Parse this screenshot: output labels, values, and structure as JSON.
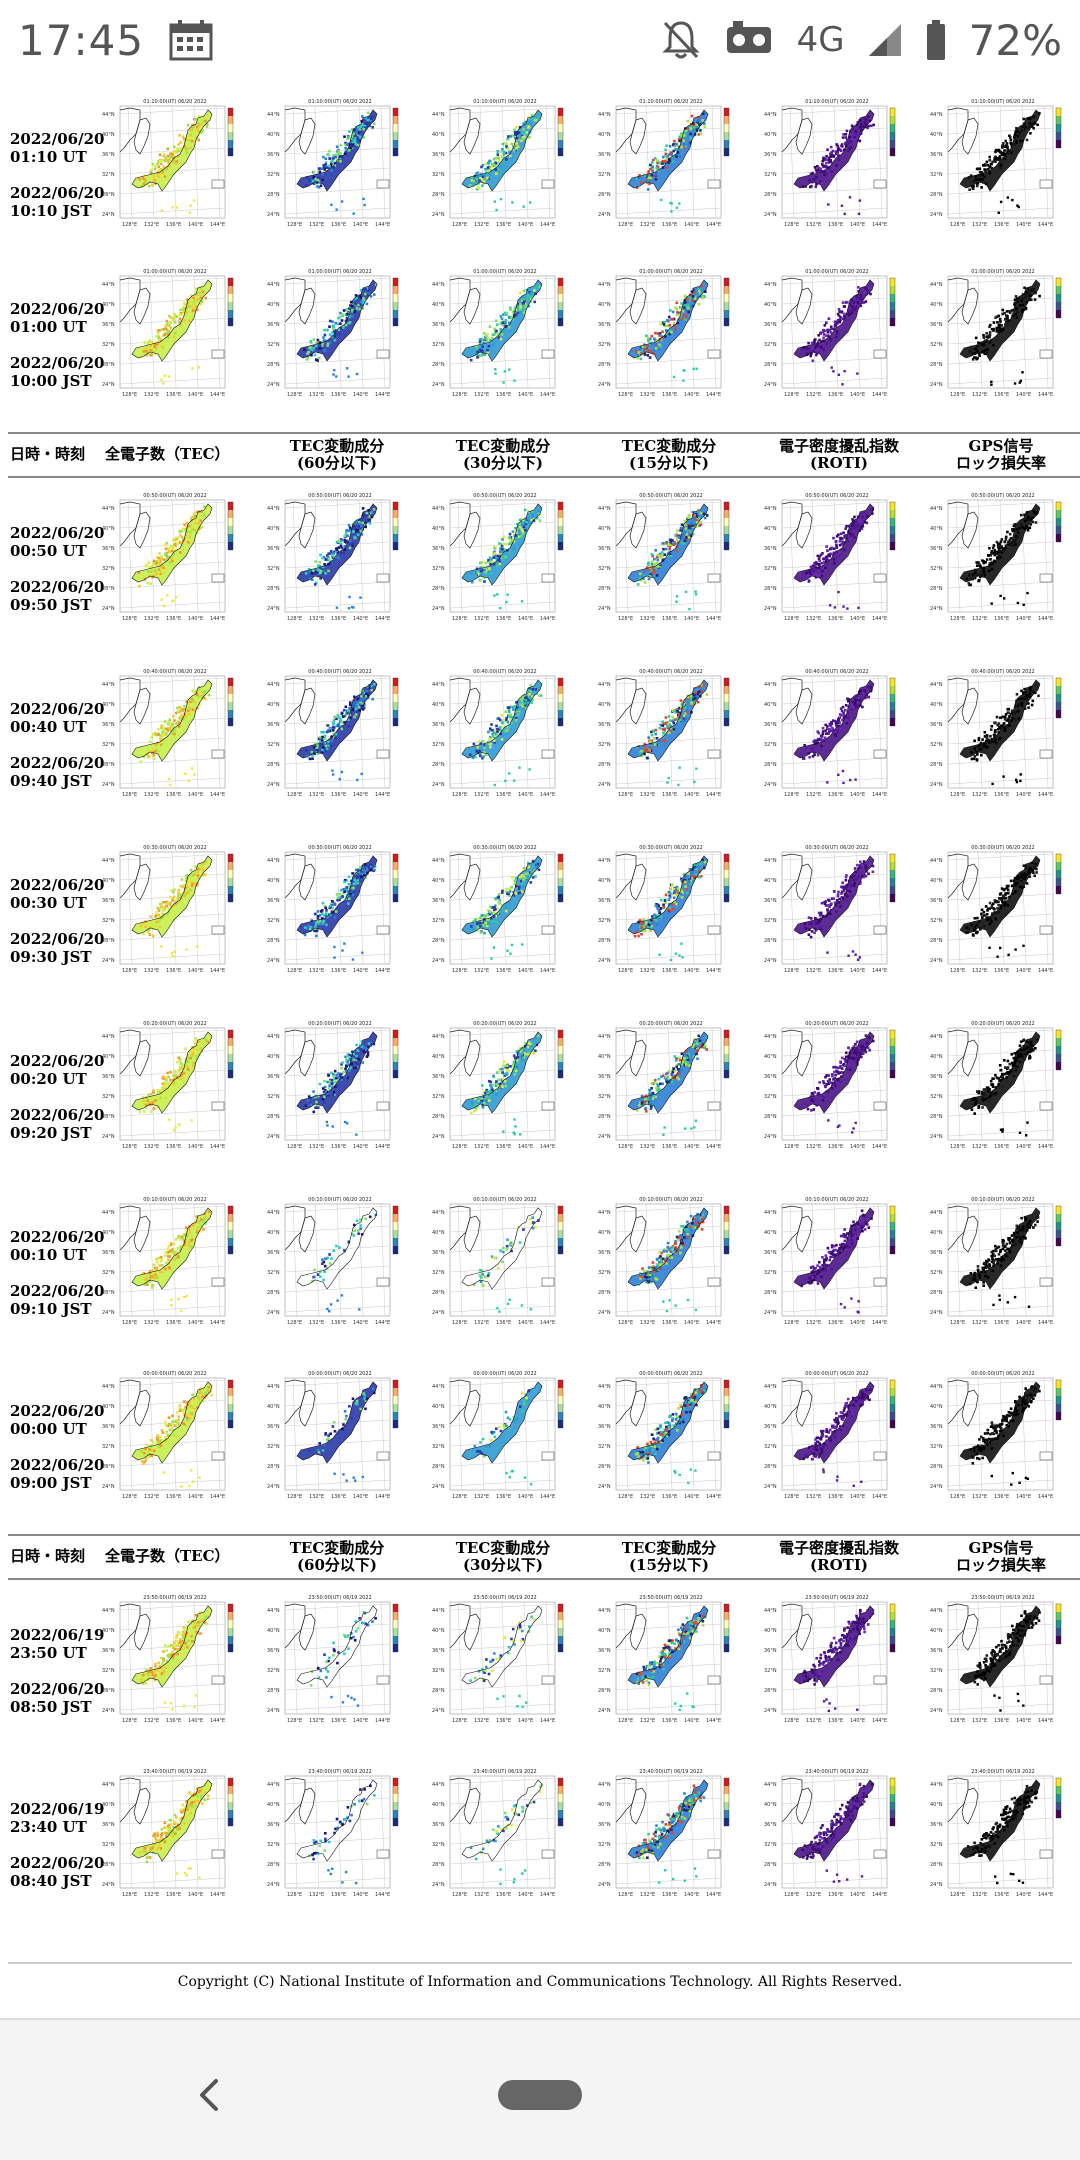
{
  "status_bar": {
    "time": "17:45",
    "network": "4G",
    "battery": "72%",
    "icons": [
      "calendar-icon",
      "mute-bell-icon",
      "data-saver-icon",
      "signal-icon",
      "battery-icon"
    ]
  },
  "column_headers": {
    "datetime": "日時・時刻",
    "tec": "全電子数（TEC）",
    "tec60_l1": "TEC変動成分",
    "tec60_l2": "(60分以下)",
    "tec30_l1": "TEC変動成分",
    "tec30_l2": "(30分以下)",
    "tec15_l1": "TEC変動成分",
    "tec15_l2": "(15分以下)",
    "roti_l1": "電子密度擾乱指数",
    "roti_l2": "(ROTI)",
    "lol_l1": "GPS信号",
    "lol_l2": "ロック損失率"
  },
  "rows": [
    {
      "ut": [
        "2022/06/20",
        "01:10 UT"
      ],
      "jst": [
        "2022/06/20",
        "10:10 JST"
      ],
      "map_title": "01:10:00(UT) 06/20 2022"
    },
    {
      "ut": [
        "2022/06/20",
        "01:00 UT"
      ],
      "jst": [
        "2022/06/20",
        "10:00 JST"
      ],
      "map_title": "01:00:00(UT) 06/20 2022"
    },
    {
      "ut": [
        "2022/06/20",
        "00:50 UT"
      ],
      "jst": [
        "2022/06/20",
        "09:50 JST"
      ],
      "map_title": "00:50:00(UT) 06/20 2022"
    },
    {
      "ut": [
        "2022/06/20",
        "00:40 UT"
      ],
      "jst": [
        "2022/06/20",
        "09:40 JST"
      ],
      "map_title": "00:40:00(UT) 06/20 2022"
    },
    {
      "ut": [
        "2022/06/20",
        "00:30 UT"
      ],
      "jst": [
        "2022/06/20",
        "09:30 JST"
      ],
      "map_title": "00:30:00(UT) 06/20 2022"
    },
    {
      "ut": [
        "2022/06/20",
        "00:20 UT"
      ],
      "jst": [
        "2022/06/20",
        "09:20 JST"
      ],
      "map_title": "00:20:00(UT) 06/20 2022"
    },
    {
      "ut": [
        "2022/06/20",
        "00:10 UT"
      ],
      "jst": [
        "2022/06/20",
        "09:10 JST"
      ],
      "map_title": "00:10:00(UT) 06/20 2022"
    },
    {
      "ut": [
        "2022/06/20",
        "00:00 UT"
      ],
      "jst": [
        "2022/06/20",
        "09:00 JST"
      ],
      "map_title": "00:00:00(UT) 06/20 2022"
    },
    {
      "ut": [
        "2022/06/19",
        "23:50 UT"
      ],
      "jst": [
        "2022/06/20",
        "08:50 JST"
      ],
      "map_title": "23:50:00(UT) 06/19 2022"
    },
    {
      "ut": [
        "2022/06/19",
        "23:40 UT"
      ],
      "jst": [
        "2022/06/20",
        "08:40 JST"
      ],
      "map_title": "23:40:00(UT) 06/19 2022"
    }
  ],
  "map_axis": {
    "lat_ticks": [
      "44°N",
      "40°N",
      "36°N",
      "32°N",
      "28°N",
      "24°N"
    ],
    "lon_ticks": [
      "128°E",
      "132°E",
      "136°E",
      "140°E",
      "144°E"
    ]
  },
  "map_types": [
    {
      "key": "tec",
      "colors": [
        "#9fe34a",
        "#c6f04a",
        "#e8e84a",
        "#f2c43a",
        "#ee9a2a"
      ]
    },
    {
      "key": "tec60",
      "colors": [
        "#1c1470",
        "#2a3aa8",
        "#2f7fd6",
        "#30c8c8",
        "#7ee06a"
      ]
    },
    {
      "key": "tec30",
      "colors": [
        "#2a3aa8",
        "#2f9ad0",
        "#33c9a6",
        "#7ee06a",
        "#d8ec44"
      ]
    },
    {
      "key": "tec15",
      "colors": [
        "#1b2a6e",
        "#2f7fd6",
        "#33c9a6",
        "#a8e04a",
        "#e5432a"
      ]
    },
    {
      "key": "roti",
      "colors": [
        "#3b0a6e",
        "#4b1488",
        "#5a1ea0",
        "#6a2ab6",
        "#3b0a6e"
      ]
    },
    {
      "key": "lol",
      "colors": [
        "#000000",
        "#111111",
        "#000000",
        "#222222",
        "#000000"
      ]
    }
  ],
  "copyright": "Copyright (C) National Institute of Information and Communications Technology. All Rights Reserved.",
  "nav": {
    "back": "back-icon",
    "home": "home-pill"
  }
}
